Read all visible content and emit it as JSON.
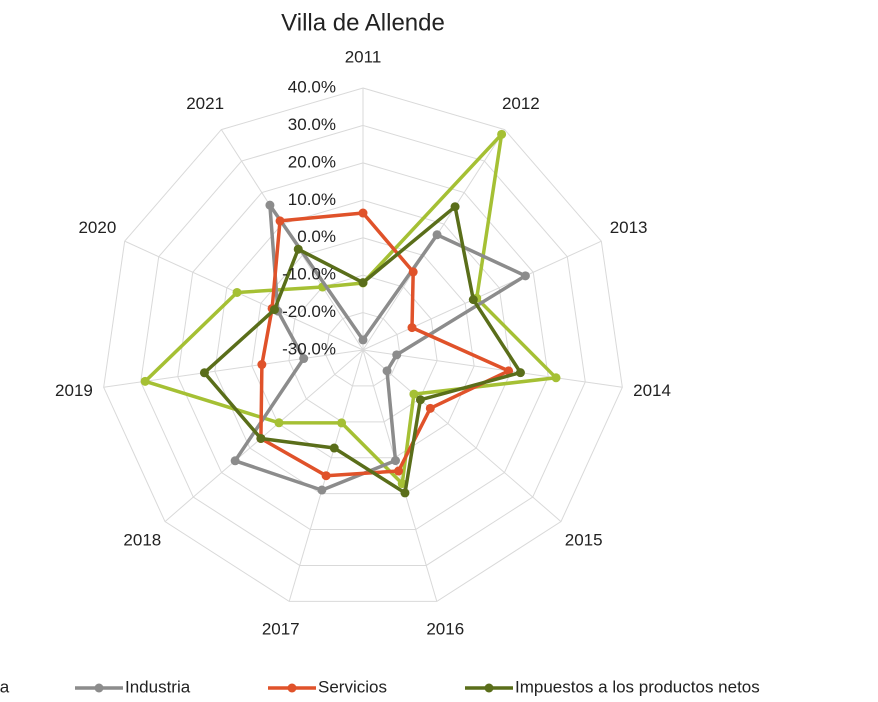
{
  "chart_data": {
    "type": "radar",
    "title": "Villa de Allende",
    "categories": [
      "2011",
      "2012",
      "2013",
      "2014",
      "2015",
      "2016",
      "2017",
      "2018",
      "2019",
      "2020",
      "2021"
    ],
    "ylim": [
      -30,
      40
    ],
    "yticks": [
      {
        "value": -30,
        "label": "-30.0%"
      },
      {
        "value": -20,
        "label": "-20.0%"
      },
      {
        "value": -10,
        "label": "-10.0%"
      },
      {
        "value": 0,
        "label": "0.0%"
      },
      {
        "value": 10,
        "label": "10.0%"
      },
      {
        "value": 20,
        "label": "20.0%"
      },
      {
        "value": 30,
        "label": "30.0%"
      },
      {
        "value": 40,
        "label": "40.0%"
      }
    ],
    "grid": true,
    "legend": "bottom",
    "series": [
      {
        "name": "Agricultura",
        "color": "#a5c034",
        "values": [
          -12.1,
          38.5,
          3.4,
          22.1,
          -12.0,
          7.2,
          -9.7,
          -0.3,
          28.8,
          7.0,
          -10.0
        ]
      },
      {
        "name": "Industria",
        "color": "#8c8c8c",
        "values": [
          -27.3,
          6.6,
          17.7,
          -20.9,
          -21.5,
          0.8,
          9.0,
          15.2,
          -14.0,
          -5.0,
          16.0
        ]
      },
      {
        "name": "Servicios",
        "color": "#e0522a",
        "values": [
          6.6,
          -5.2,
          -15.6,
          9.3,
          -6.2,
          3.7,
          5.0,
          6.1,
          -2.7,
          -3.3,
          11.0
        ]
      },
      {
        "name": "Impuestos a los productos netos",
        "color": "#5a6e1a",
        "values": [
          -12.0,
          15.5,
          2.4,
          12.5,
          -9.7,
          9.8,
          -2.7,
          6.1,
          12.8,
          -4.0,
          2.0
        ]
      }
    ]
  }
}
